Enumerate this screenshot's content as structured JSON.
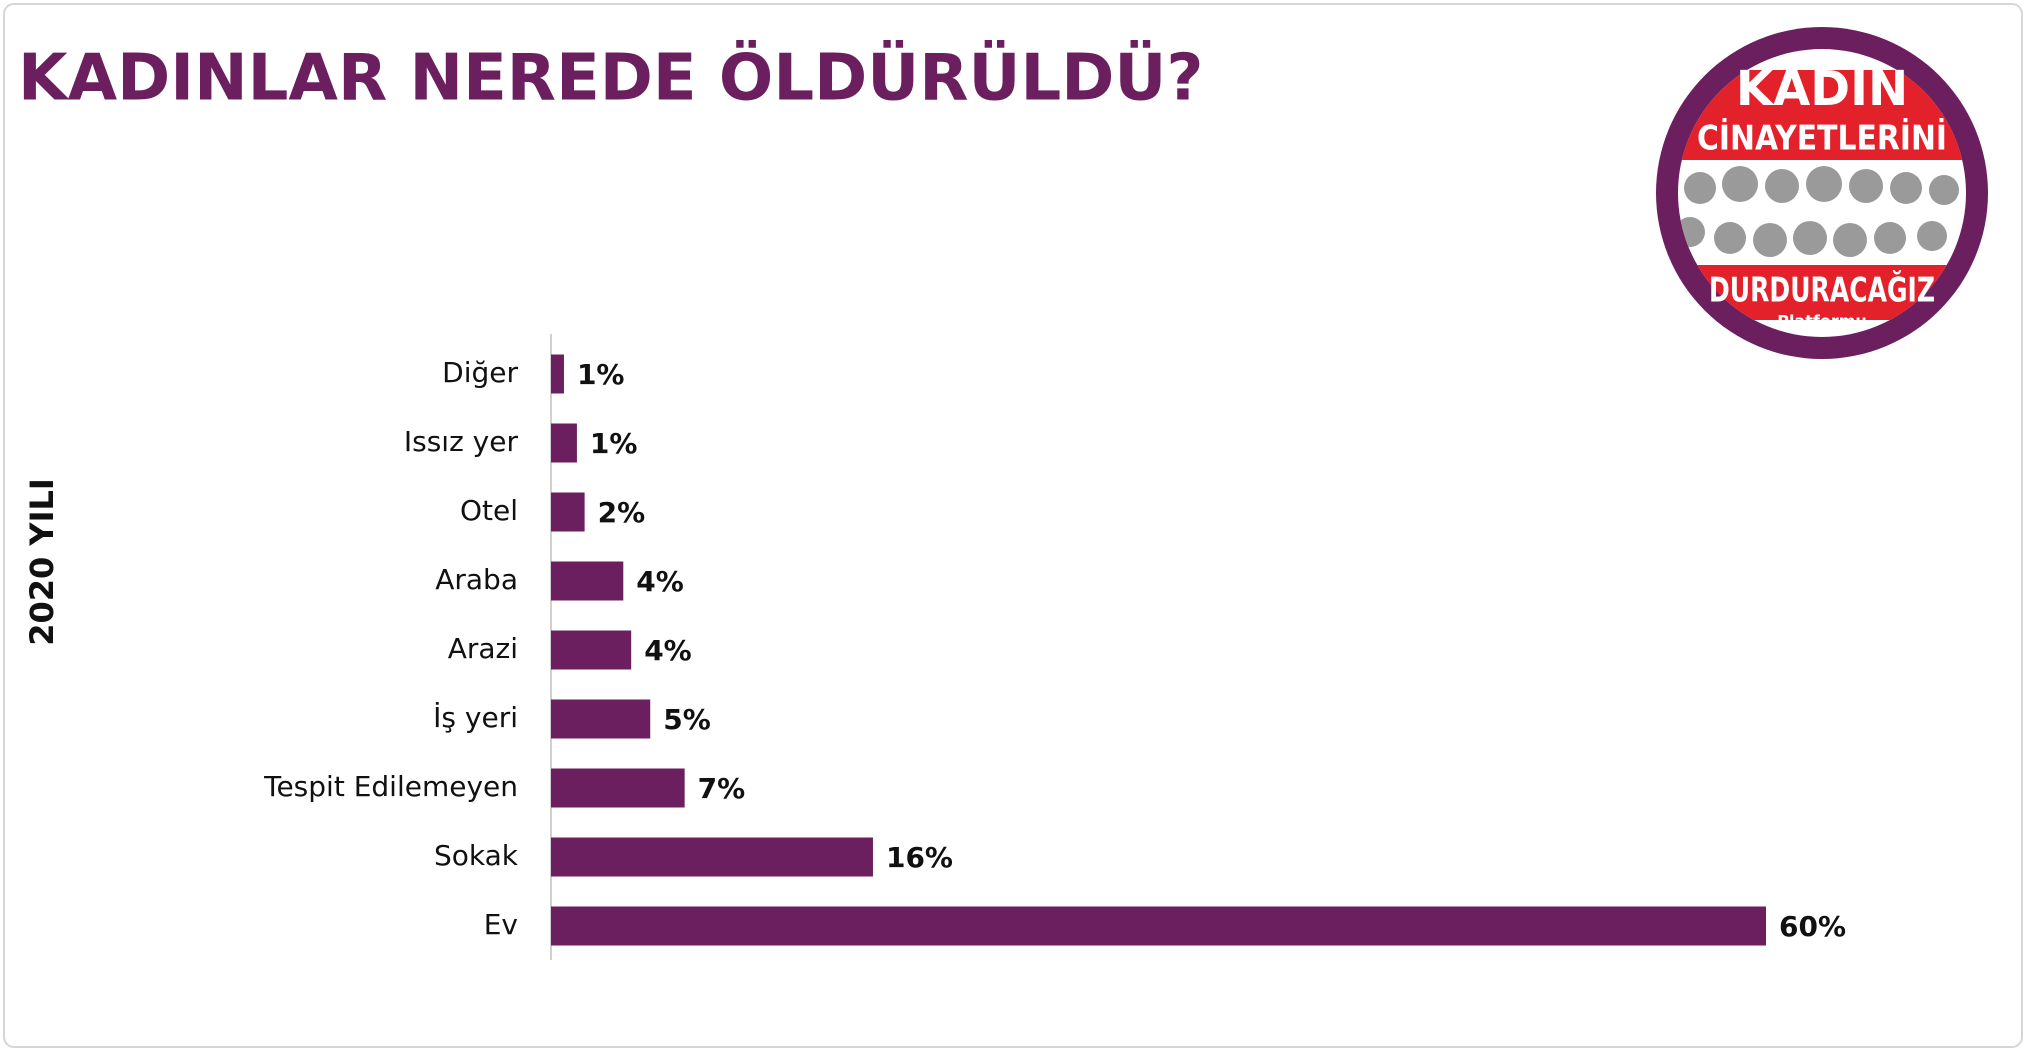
{
  "chart_data": {
    "type": "bar",
    "orientation": "horizontal",
    "title": "KADINLAR  NEREDE ÖLDÜRÜLDÜ?",
    "y_label": "2020 YILI",
    "categories": [
      "Diğer",
      "Issız yer",
      "Otel",
      "Araba",
      "Arazi",
      "İş yeri",
      "Tespit Edilemeyen",
      "Sokak",
      "Ev"
    ],
    "values": [
      0.64,
      1.28,
      1.66,
      3.57,
      3.96,
      4.9,
      6.6,
      15.9,
      60
    ],
    "value_labels": [
      "1%",
      "1%",
      "2%",
      "4%",
      "4%",
      "5%",
      "7%",
      "16%",
      "60%"
    ],
    "color": "#6b1f5e"
  },
  "logo": {
    "line1": "KADIN",
    "line2": "CİNAYETLERİNİ",
    "line3": "DURDURACAĞIZ",
    "line4": "Platformu"
  }
}
